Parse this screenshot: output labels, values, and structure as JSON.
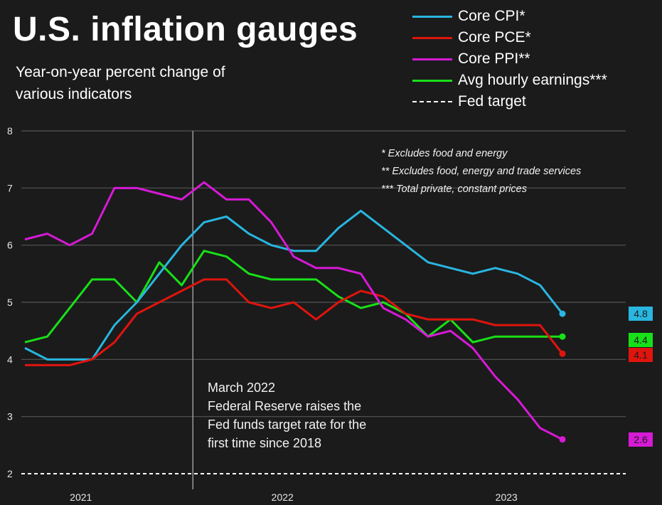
{
  "header": {
    "title": "U.S. inflation gauges",
    "subtitle": "Year-on-year percent change of various indicators"
  },
  "legend": [
    {
      "label": "Core CPI*",
      "color": "#29b6e0",
      "style": "solid"
    },
    {
      "label": "Core PCE*",
      "color": "#e0140e",
      "style": "solid"
    },
    {
      "label": "Core PPI**",
      "color": "#d61ad6",
      "style": "solid"
    },
    {
      "label": "Avg hourly earnings***",
      "color": "#18e018",
      "style": "solid"
    },
    {
      "label": "Fed target",
      "color": "#ffffff",
      "style": "dashed"
    }
  ],
  "notes": [
    "* Excludes food and energy",
    "** Excludes food, energy and trade services",
    "*** Total private, constant prices"
  ],
  "annotation": {
    "lines": [
      "March 2022",
      "Federal Reserve raises the",
      "Fed funds target rate for the",
      "first time since 2018"
    ]
  },
  "chart_data": {
    "type": "line",
    "title": "U.S. inflation gauges",
    "subtitle": "Year-on-year percent change of various indicators",
    "xlabel": "",
    "ylabel": "",
    "ylim": [
      2,
      8
    ],
    "yticks": [
      2,
      3,
      4,
      5,
      6,
      7,
      8
    ],
    "x_range": [
      0,
      26.5
    ],
    "xticks": [
      {
        "label": "2021",
        "pos": 2.5
      },
      {
        "label": "2022",
        "pos": 11.5
      },
      {
        "label": "2023",
        "pos": 21.5
      }
    ],
    "vline": {
      "x": 7.5,
      "label": "March 2022"
    },
    "hline": {
      "y": 2,
      "label": "Fed target",
      "style": "dashed"
    },
    "x": [
      0,
      1,
      2,
      3,
      4,
      5,
      6,
      7,
      8,
      9,
      10,
      11,
      12,
      13,
      14,
      15,
      16,
      17,
      18,
      19,
      20,
      21,
      22,
      23,
      24
    ],
    "series": [
      {
        "name": "Core CPI*",
        "color": "#29b6e0",
        "values": [
          4.2,
          4.0,
          4.0,
          4.0,
          4.6,
          5.0,
          5.5,
          6.0,
          6.4,
          6.5,
          6.2,
          6.0,
          5.9,
          5.9,
          6.3,
          6.6,
          6.3,
          6.0,
          5.7,
          5.6,
          5.5,
          5.6,
          5.5,
          5.3,
          4.8
        ]
      },
      {
        "name": "Core PCE*",
        "color": "#e0140e",
        "values": [
          3.9,
          3.9,
          3.9,
          4.0,
          4.3,
          4.8,
          5.0,
          5.2,
          5.4,
          5.4,
          5.0,
          4.9,
          5.0,
          4.7,
          5.0,
          5.2,
          5.1,
          4.8,
          4.7,
          4.7,
          4.7,
          4.6,
          4.6,
          4.6,
          4.1
        ]
      },
      {
        "name": "Core PPI**",
        "color": "#d61ad6",
        "values": [
          6.1,
          6.2,
          6.0,
          6.2,
          7.0,
          7.0,
          6.9,
          6.8,
          7.1,
          6.8,
          6.8,
          6.4,
          5.8,
          5.6,
          5.6,
          5.5,
          4.9,
          4.7,
          4.4,
          4.5,
          4.2,
          3.7,
          3.3,
          2.8,
          2.6
        ]
      },
      {
        "name": "Avg hourly earnings***",
        "color": "#18e018",
        "values": [
          4.3,
          4.4,
          4.9,
          5.4,
          5.4,
          5.0,
          5.7,
          5.3,
          5.9,
          5.8,
          5.5,
          5.4,
          5.4,
          5.4,
          5.1,
          4.9,
          5.0,
          4.8,
          4.4,
          4.7,
          4.3,
          4.4,
          4.4,
          4.4,
          4.4
        ]
      }
    ],
    "end_labels": [
      {
        "series": "Core CPI*",
        "value": "4.8",
        "color": "#29b6e0"
      },
      {
        "series": "Avg hourly earnings***",
        "value": "4.4",
        "color": "#18e018"
      },
      {
        "series": "Core PCE*",
        "value": "4.1",
        "color": "#e0140e"
      },
      {
        "series": "Core PPI**",
        "value": "2.6",
        "color": "#d61ad6"
      }
    ]
  }
}
